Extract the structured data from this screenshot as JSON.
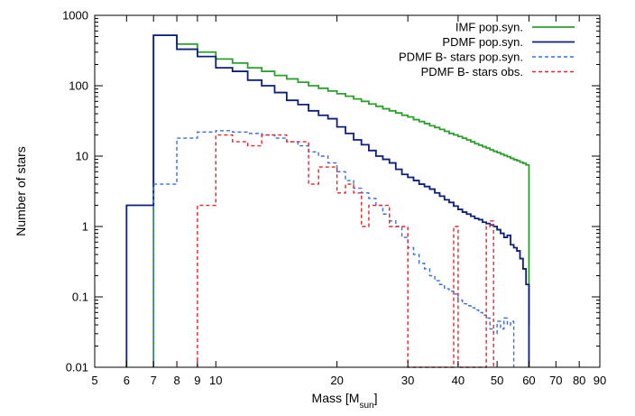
{
  "chart_data": {
    "type": "line",
    "title": "",
    "xlabel": "Mass [M",
    "xlabel_sub": "sun",
    "xlabel_end": "]",
    "ylabel": "Number of stars",
    "x_scale": "log",
    "y_scale": "log",
    "xlim": [
      5,
      90
    ],
    "ylim": [
      0.01,
      1000
    ],
    "grid": false,
    "legend_position": "top-right",
    "x_ticks": [
      5,
      6,
      7,
      8,
      9,
      10,
      20,
      30,
      40,
      50,
      60,
      70,
      80,
      90
    ],
    "x_tick_labels": [
      "5",
      "6",
      "7",
      "8",
      "9",
      "10",
      "20",
      "30",
      "40",
      "50",
      "60",
      "70",
      "80",
      "90"
    ],
    "y_ticks": [
      0.01,
      0.1,
      1,
      10,
      100,
      1000
    ],
    "y_tick_labels": [
      "0.01",
      "0.1",
      "1",
      "10",
      "100",
      "1000"
    ],
    "series": [
      {
        "name": "IMF pop.syn.",
        "color": "#2ca02c",
        "dash": "solid",
        "points": [
          [
            7,
            520
          ],
          [
            8,
            390
          ],
          [
            9,
            300
          ],
          [
            10,
            240
          ],
          [
            11,
            210
          ],
          [
            12,
            180
          ],
          [
            13,
            160
          ],
          [
            14,
            140
          ],
          [
            15,
            125
          ],
          [
            16,
            112
          ],
          [
            17,
            100
          ],
          [
            18,
            92
          ],
          [
            19,
            84
          ],
          [
            20,
            77
          ],
          [
            21,
            71
          ],
          [
            22,
            65
          ],
          [
            23,
            60
          ],
          [
            24,
            55
          ],
          [
            25,
            51
          ],
          [
            26,
            47
          ],
          [
            27,
            44
          ],
          [
            28,
            41
          ],
          [
            29,
            38
          ],
          [
            30,
            36
          ],
          [
            31,
            33
          ],
          [
            32,
            31
          ],
          [
            33,
            29
          ],
          [
            34,
            27
          ],
          [
            35,
            25.5
          ],
          [
            36,
            24
          ],
          [
            37,
            22.5
          ],
          [
            38,
            21
          ],
          [
            39,
            20
          ],
          [
            40,
            19
          ],
          [
            41,
            18
          ],
          [
            42,
            17
          ],
          [
            43,
            16
          ],
          [
            44,
            15
          ],
          [
            45,
            14.3
          ],
          [
            46,
            13.6
          ],
          [
            47,
            13
          ],
          [
            48,
            12.3
          ],
          [
            49,
            11.7
          ],
          [
            50,
            11.2
          ],
          [
            51,
            10.7
          ],
          [
            52,
            10.2
          ],
          [
            53,
            9.8
          ],
          [
            54,
            9.3
          ],
          [
            55,
            8.9
          ],
          [
            56,
            8.6
          ],
          [
            57,
            8.2
          ],
          [
            58,
            7.9
          ],
          [
            59,
            7.5
          ],
          [
            60,
            0.04
          ]
        ]
      },
      {
        "name": "PDMF pop.syn.",
        "color": "#0c1f7a",
        "dash": "solid",
        "points": [
          [
            6,
            2
          ],
          [
            7,
            520
          ],
          [
            8,
            330
          ],
          [
            9,
            260
          ],
          [
            10,
            180
          ],
          [
            11,
            160
          ],
          [
            12,
            120
          ],
          [
            13,
            100
          ],
          [
            14,
            80
          ],
          [
            15,
            62
          ],
          [
            16,
            54
          ],
          [
            17,
            44
          ],
          [
            18,
            38
          ],
          [
            19,
            34
          ],
          [
            20,
            26
          ],
          [
            21,
            21
          ],
          [
            22,
            17
          ],
          [
            23,
            14.5
          ],
          [
            24,
            12
          ],
          [
            25,
            10
          ],
          [
            26,
            9
          ],
          [
            27,
            8
          ],
          [
            28,
            6.5
          ],
          [
            29,
            5.5
          ],
          [
            30,
            5
          ],
          [
            31,
            4.5
          ],
          [
            32,
            4
          ],
          [
            33,
            3.7
          ],
          [
            34,
            3.4
          ],
          [
            35,
            3
          ],
          [
            36,
            2.7
          ],
          [
            37,
            2.4
          ],
          [
            38,
            2.2
          ],
          [
            39,
            1.95
          ],
          [
            40,
            1.75
          ],
          [
            41,
            1.6
          ],
          [
            42,
            1.5
          ],
          [
            43,
            1.4
          ],
          [
            44,
            1.3
          ],
          [
            45,
            1.25
          ],
          [
            46,
            1.15
          ],
          [
            47,
            1.1
          ],
          [
            48,
            1.05
          ],
          [
            49,
            1
          ],
          [
            50,
            0.9
          ],
          [
            51,
            0.8
          ],
          [
            52,
            0.7
          ],
          [
            53,
            0.75
          ],
          [
            54,
            0.55
          ],
          [
            55,
            0.5
          ],
          [
            56,
            0.45
          ],
          [
            57,
            0.35
          ],
          [
            58,
            0.25
          ],
          [
            59,
            0.15
          ],
          [
            60,
            0.01
          ]
        ]
      },
      {
        "name": "PDMF B- stars pop.syn.",
        "color": "#3a6fd8",
        "dash": "dashed",
        "points": [
          [
            7,
            4
          ],
          [
            8,
            18
          ],
          [
            9,
            22
          ],
          [
            10,
            23
          ],
          [
            11,
            22
          ],
          [
            12,
            21
          ],
          [
            13,
            20
          ],
          [
            14,
            18
          ],
          [
            15,
            16
          ],
          [
            16,
            14
          ],
          [
            17,
            11.5
          ],
          [
            18,
            10
          ],
          [
            19,
            8
          ],
          [
            20,
            6
          ],
          [
            21,
            4.5
          ],
          [
            22,
            3.5
          ],
          [
            23,
            3
          ],
          [
            24,
            2.5
          ],
          [
            25,
            2
          ],
          [
            26,
            1.5
          ],
          [
            27,
            1.2
          ],
          [
            28,
            1
          ],
          [
            29,
            0.7
          ],
          [
            30,
            0.5
          ],
          [
            31,
            0.4
          ],
          [
            32,
            0.3
          ],
          [
            33,
            0.25
          ],
          [
            34,
            0.2
          ],
          [
            35,
            0.17
          ],
          [
            36,
            0.15
          ],
          [
            37,
            0.13
          ],
          [
            38,
            0.12
          ],
          [
            39,
            0.11
          ],
          [
            40,
            0.09
          ],
          [
            41,
            0.08
          ],
          [
            42,
            0.075
          ],
          [
            43,
            0.07
          ],
          [
            44,
            0.065
          ],
          [
            45,
            0.06
          ],
          [
            46,
            0.055
          ],
          [
            47,
            0.05
          ],
          [
            48,
            0.035
          ],
          [
            49,
            0.03
          ],
          [
            50,
            0.045
          ],
          [
            51,
            0.035
          ],
          [
            52,
            0.05
          ],
          [
            53,
            0.04
          ],
          [
            54,
            0.045
          ],
          [
            55,
            0.01
          ]
        ]
      },
      {
        "name": "PDMF B- stars obs.",
        "color": "#e0282b",
        "dash": "dashed",
        "points": [
          [
            9,
            2
          ],
          [
            10,
            20
          ],
          [
            11,
            16
          ],
          [
            12,
            14
          ],
          [
            13,
            20
          ],
          [
            14,
            20
          ],
          [
            15,
            16
          ],
          [
            16,
            16
          ],
          [
            17,
            4
          ],
          [
            18,
            7
          ],
          [
            19,
            7
          ],
          [
            20,
            3
          ],
          [
            21,
            4
          ],
          [
            22,
            3
          ],
          [
            23,
            1
          ],
          [
            24,
            2
          ],
          [
            25,
            2
          ],
          [
            26,
            2
          ],
          [
            27,
            1
          ],
          [
            28,
            1
          ],
          [
            29,
            1
          ],
          [
            30,
            0.01
          ],
          [
            39,
            1
          ],
          [
            40,
            0.01
          ],
          [
            47,
            1
          ],
          [
            48,
            1.2
          ],
          [
            49,
            0.01
          ]
        ]
      }
    ]
  }
}
